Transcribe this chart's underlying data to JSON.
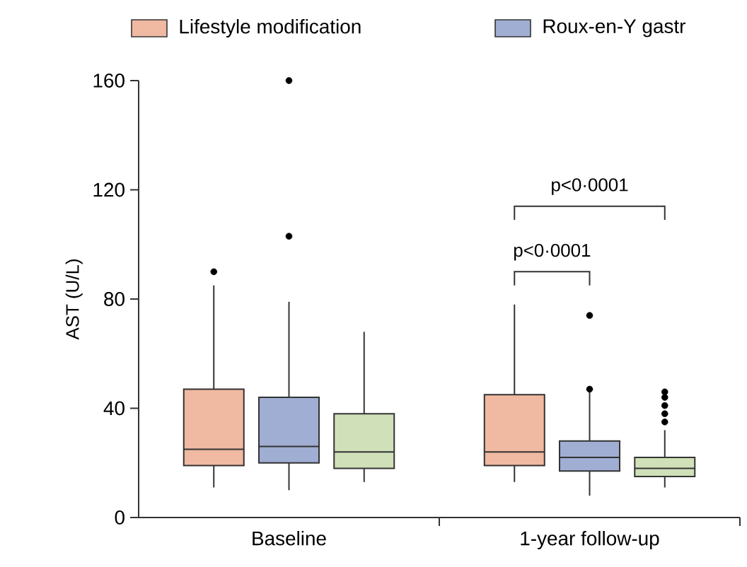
{
  "chart_data": {
    "type": "box",
    "ylabel": "AST (U/L)",
    "categories": [
      "Baseline",
      "1-year follow-up"
    ],
    "ylim": [
      0,
      160
    ],
    "yticks": [
      0,
      40,
      80,
      120,
      160
    ],
    "grid": false,
    "legend": "top",
    "annotations": [
      "p<0·0001",
      "p<0·0001"
    ],
    "series": [
      {
        "name": "Lifestyle modification",
        "color": "#f0b9a1",
        "boxes": [
          {
            "low": 11,
            "q1": 19,
            "median": 25,
            "q3": 47,
            "high": 85,
            "outliers": [
              90
            ]
          },
          {
            "low": 13,
            "q1": 19,
            "median": 24,
            "q3": 45,
            "high": 78
          }
        ]
      },
      {
        "name": "Roux-en-Y gastr",
        "color": "#a0aed3",
        "boxes": [
          {
            "low": 10,
            "q1": 20,
            "median": 26,
            "q3": 44,
            "high": 79,
            "outliers": [
              103,
              160
            ]
          },
          {
            "low": 8,
            "q1": 17,
            "median": 22,
            "q3": 28,
            "high": 46,
            "outliers": [
              47,
              74
            ]
          }
        ]
      },
      {
        "color": "#d0e1b9",
        "boxes": [
          {
            "low": 13,
            "q1": 18,
            "median": 24,
            "q3": 38,
            "high": 68
          },
          {
            "low": 11,
            "q1": 15,
            "median": 18,
            "q3": 22,
            "high": 32,
            "outliers": [
              35,
              38,
              41,
              44,
              46
            ]
          }
        ]
      }
    ]
  }
}
